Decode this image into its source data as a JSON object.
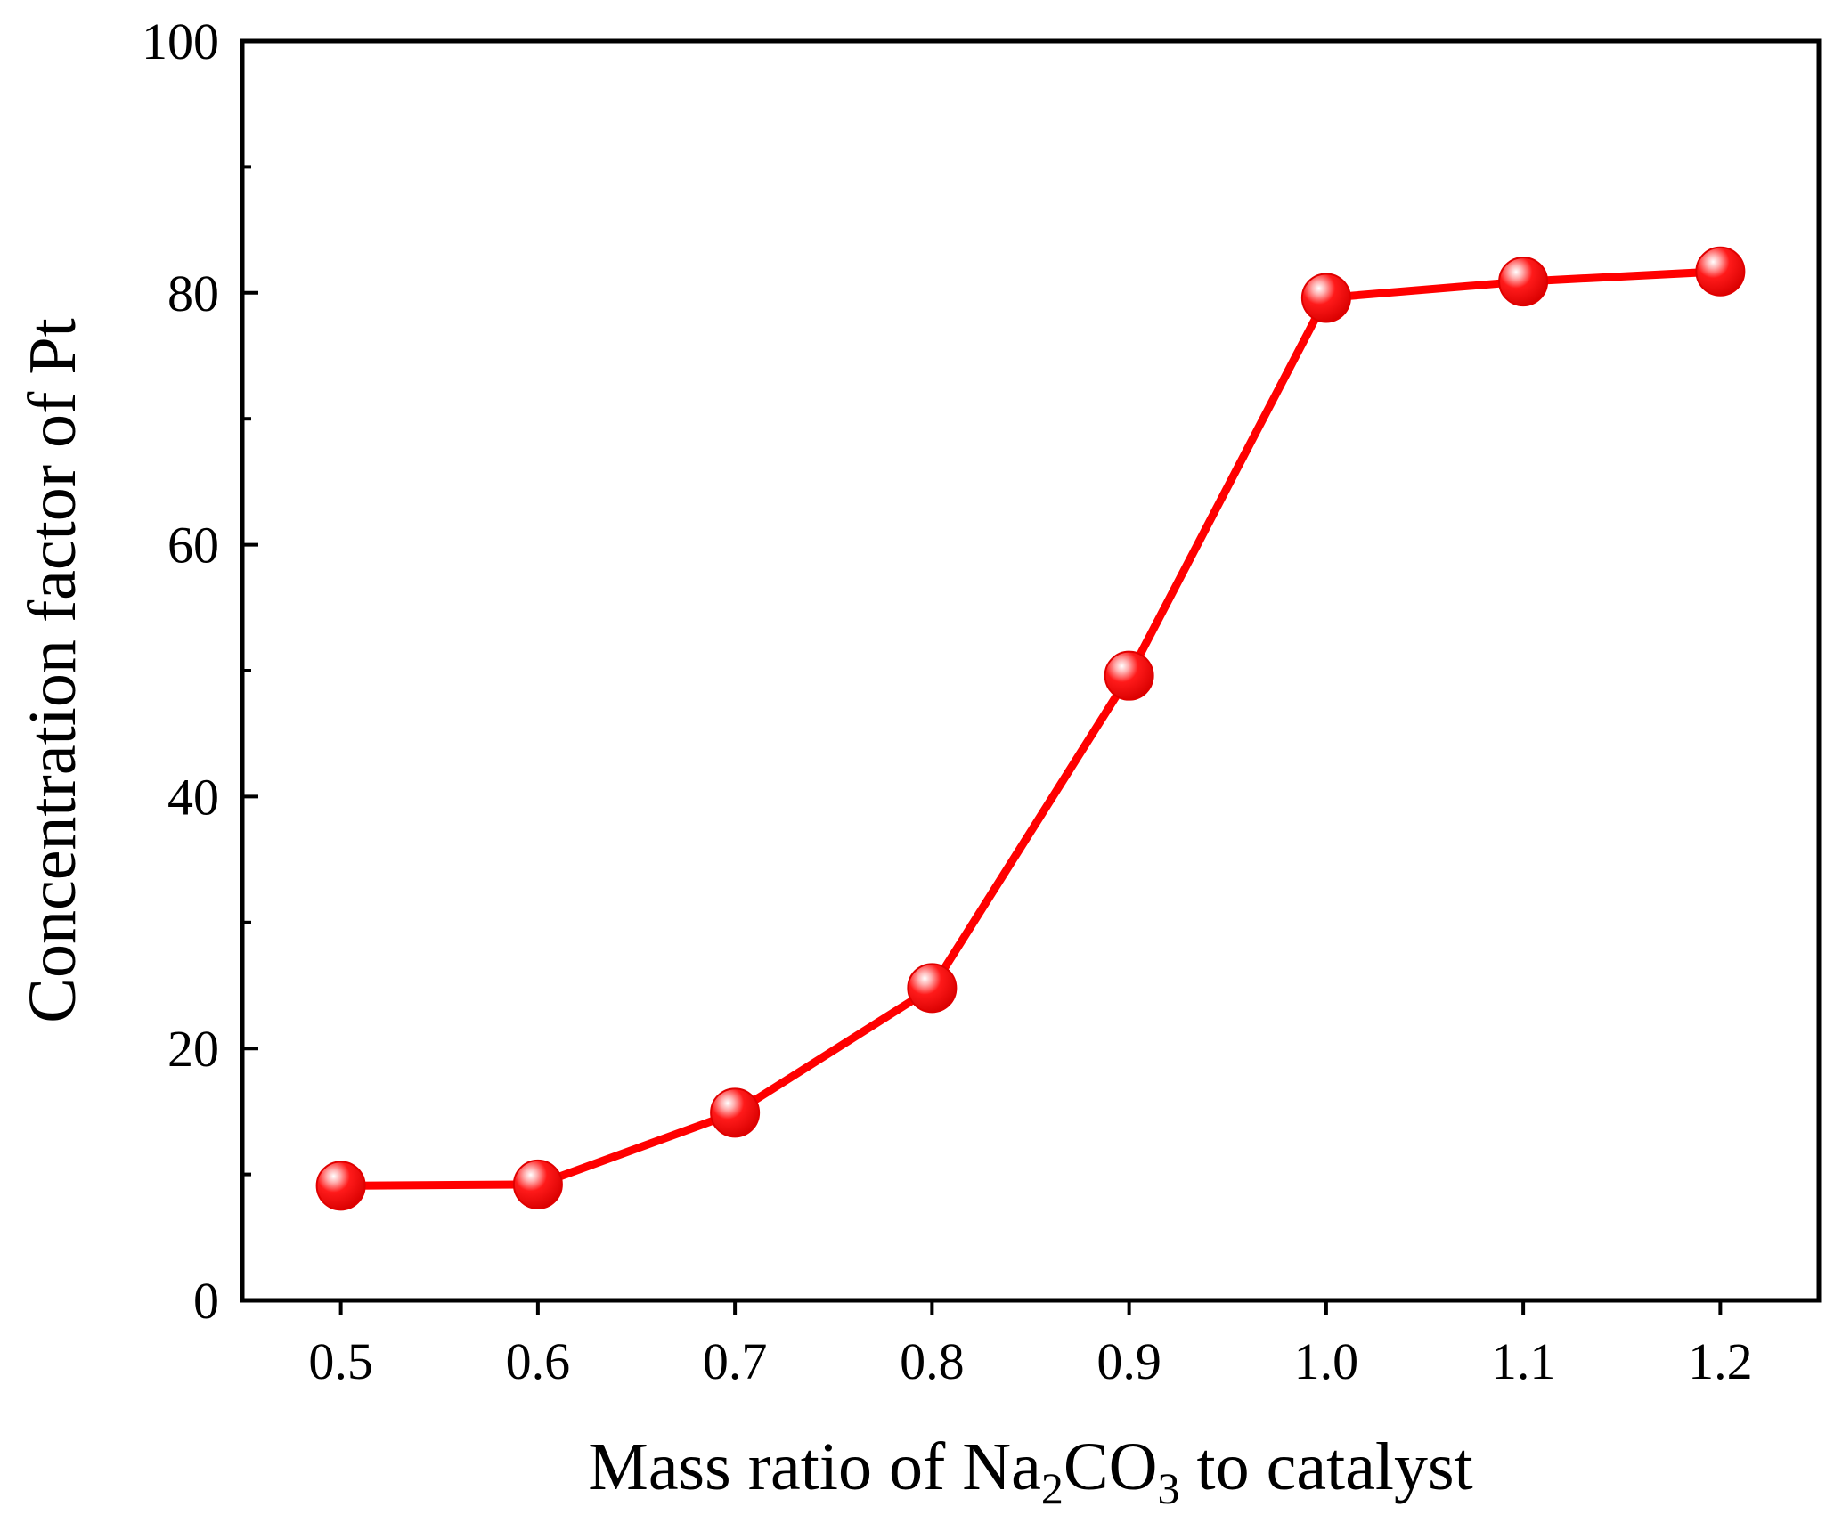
{
  "chart_data": {
    "type": "line",
    "title": "",
    "xlabel_parts": [
      "Mass ratio of Na",
      "2",
      "CO",
      "3",
      " to catalyst"
    ],
    "ylabel": "Concentration factor of Pt",
    "x": [
      0.5,
      0.6,
      0.7,
      0.8,
      0.9,
      1.0,
      1.1,
      1.2
    ],
    "x_tick_labels": [
      "0.5",
      "0.6",
      "0.7",
      "0.8",
      "0.9",
      "1.0",
      "1.1",
      "1.2"
    ],
    "xlim": [
      0.45,
      1.25
    ],
    "ylim": [
      0,
      100
    ],
    "y_ticks": [
      0,
      20,
      40,
      60,
      80,
      100
    ],
    "y_tick_labels": [
      "0",
      "20",
      "40",
      "60",
      "80",
      "100"
    ],
    "y_minor_ticks": [
      10,
      30,
      50,
      70,
      90
    ],
    "grid": false,
    "legend": "none",
    "series": [
      {
        "name": "Concentration factor of Pt",
        "values": [
          9.1,
          9.2,
          14.9,
          24.8,
          49.6,
          79.6,
          80.9,
          81.7
        ],
        "color": "#ff0000"
      }
    ]
  }
}
